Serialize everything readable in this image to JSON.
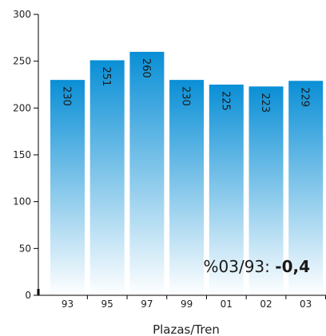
{
  "chart_data": {
    "type": "bar",
    "categories": [
      "93",
      "95",
      "97",
      "99",
      "01",
      "02",
      "03"
    ],
    "values": [
      230,
      251,
      260,
      230,
      225,
      223,
      229
    ],
    "title": "",
    "xlabel": "Plazas/Tren",
    "ylabel": "",
    "ylim": [
      0,
      300
    ],
    "yticks": [
      0,
      50,
      100,
      150,
      200,
      250,
      300
    ],
    "grid": false,
    "annotation": {
      "label": "%03/93: ",
      "value": "-0,4"
    },
    "colors": {
      "bar_top": "#0a8fd6",
      "bar_bottom": "#ffffff",
      "axis": "#000000"
    }
  }
}
